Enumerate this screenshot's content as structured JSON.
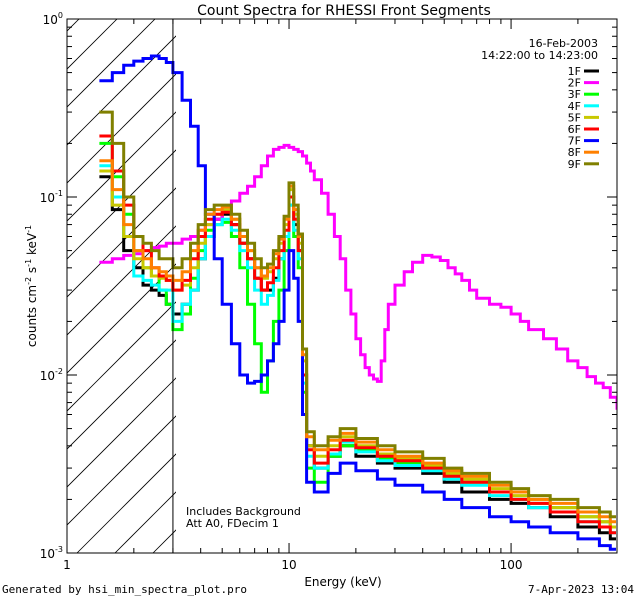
{
  "chart_data": {
    "type": "line",
    "title": "Count Spectra for RHESSI Front Segments",
    "xlabel": "Energy (keV)",
    "ylabel_parts": [
      "counts cm",
      "-2",
      " s",
      "-1",
      " keV",
      "-1"
    ],
    "xscale": "log",
    "yscale": "log",
    "xlim": [
      1,
      300
    ],
    "ylim": [
      0.001,
      1
    ],
    "x_ticks": [
      {
        "value": 1,
        "label": "1"
      },
      {
        "value": 10,
        "label": "10"
      },
      {
        "value": 100,
        "label": "100"
      }
    ],
    "y_ticks": [
      {
        "value": 1,
        "base": "10",
        "exp": "0"
      },
      {
        "value": 0.1,
        "base": "10",
        "exp": "-1"
      },
      {
        "value": 0.01,
        "base": "10",
        "exp": "-2"
      },
      {
        "value": 0.001,
        "base": "10",
        "exp": "-3"
      }
    ],
    "date": "16-Feb-2003",
    "time_range": "14:22:00 to 14:23:00",
    "annotations": [
      "Includes Background",
      "Att A0, FDecim 1"
    ],
    "attenuator_region_keV": [
      1,
      3
    ],
    "series": [
      {
        "name": "1F",
        "color": "#000000",
        "x": [
          1.4,
          1.6,
          1.8,
          2.0,
          2.2,
          2.4,
          2.6,
          2.8,
          3.0,
          3.3,
          3.6,
          3.9,
          4.2,
          4.6,
          5.0,
          5.5,
          6.0,
          6.5,
          7.0,
          7.5,
          8.0,
          8.5,
          9.0,
          9.5,
          10.0,
          10.5,
          11.0,
          11.5,
          12.0,
          13,
          15,
          17,
          20,
          25,
          30,
          40,
          50,
          60,
          80,
          100,
          120,
          150,
          200,
          250,
          280
        ],
        "y": [
          0.13,
          0.085,
          0.05,
          0.04,
          0.032,
          0.03,
          0.028,
          0.025,
          0.022,
          0.025,
          0.03,
          0.045,
          0.06,
          0.075,
          0.08,
          0.07,
          0.055,
          0.045,
          0.035,
          0.03,
          0.03,
          0.035,
          0.045,
          0.06,
          0.1,
          0.07,
          0.05,
          0.01,
          0.004,
          0.003,
          0.0035,
          0.004,
          0.0035,
          0.0032,
          0.003,
          0.0028,
          0.0025,
          0.0022,
          0.002,
          0.0019,
          0.0018,
          0.0016,
          0.0014,
          0.0013,
          0.0012
        ]
      },
      {
        "name": "2F",
        "color": "#ff00ff",
        "x": [
          1.4,
          1.6,
          1.8,
          2.0,
          2.2,
          2.4,
          2.6,
          2.8,
          3.0,
          3.3,
          3.6,
          3.9,
          4.2,
          4.6,
          5.0,
          5.5,
          6.0,
          6.5,
          7.0,
          7.5,
          8.0,
          8.5,
          9.0,
          9.5,
          10.0,
          10.5,
          11.0,
          11.5,
          12.0,
          12.5,
          13.0,
          14.0,
          15.0,
          16.0,
          17.0,
          18.0,
          19.0,
          20.0,
          21.0,
          22.0,
          23.0,
          24.0,
          25.0,
          26.0,
          27.0,
          28.0,
          30.0,
          33.0,
          36.0,
          40.0,
          44.0,
          48.0,
          52.0,
          56.0,
          60.0,
          65.0,
          70.0,
          80.0,
          90.0,
          100,
          110,
          120,
          140,
          160,
          180,
          200,
          220,
          240,
          260,
          280,
          300
        ],
        "y": [
          0.043,
          0.045,
          0.047,
          0.048,
          0.05,
          0.052,
          0.053,
          0.055,
          0.055,
          0.058,
          0.06,
          0.065,
          0.07,
          0.075,
          0.085,
          0.095,
          0.105,
          0.115,
          0.13,
          0.15,
          0.17,
          0.185,
          0.19,
          0.195,
          0.19,
          0.185,
          0.18,
          0.17,
          0.155,
          0.14,
          0.125,
          0.105,
          0.08,
          0.06,
          0.045,
          0.03,
          0.022,
          0.016,
          0.013,
          0.011,
          0.01,
          0.0095,
          0.0092,
          0.012,
          0.018,
          0.025,
          0.032,
          0.038,
          0.043,
          0.047,
          0.046,
          0.044,
          0.04,
          0.037,
          0.034,
          0.03,
          0.027,
          0.025,
          0.024,
          0.022,
          0.02,
          0.018,
          0.016,
          0.014,
          0.012,
          0.011,
          0.0098,
          0.009,
          0.0085,
          0.0075,
          0.0065
        ]
      },
      {
        "name": "3F",
        "color": "#00ff00",
        "x": [
          1.4,
          1.6,
          1.8,
          2.0,
          2.2,
          2.4,
          2.6,
          2.8,
          3.0,
          3.3,
          3.6,
          3.9,
          4.2,
          4.6,
          5.0,
          5.5,
          6.0,
          6.5,
          7.0,
          7.5,
          8.0,
          8.5,
          9.0,
          9.5,
          10.0,
          10.5,
          11.0,
          11.5,
          12.0,
          13,
          15,
          17,
          20,
          25,
          30,
          40,
          50,
          60,
          80,
          100,
          120,
          150,
          200,
          250,
          280
        ],
        "y": [
          0.2,
          0.13,
          0.08,
          0.05,
          0.04,
          0.036,
          0.03,
          0.025,
          0.018,
          0.022,
          0.035,
          0.05,
          0.065,
          0.07,
          0.072,
          0.06,
          0.04,
          0.025,
          0.015,
          0.008,
          0.012,
          0.02,
          0.03,
          0.05,
          0.09,
          0.06,
          0.04,
          0.008,
          0.003,
          0.0025,
          0.0035,
          0.004,
          0.0038,
          0.0034,
          0.0032,
          0.003,
          0.0027,
          0.0025,
          0.0022,
          0.002,
          0.0019,
          0.0018,
          0.0016,
          0.0015,
          0.0014
        ]
      },
      {
        "name": "4F",
        "color": "#00ffff",
        "x": [
          1.4,
          1.6,
          1.8,
          2.0,
          2.2,
          2.4,
          2.6,
          2.8,
          3.0,
          3.3,
          3.6,
          3.9,
          4.2,
          4.6,
          5.0,
          5.5,
          6.0,
          6.5,
          7.0,
          7.5,
          8.0,
          8.5,
          9.0,
          9.5,
          10.0,
          10.5,
          11.0,
          11.5,
          12.0,
          13,
          15,
          17,
          20,
          25,
          30,
          40,
          50,
          60,
          80,
          100,
          120,
          150,
          200,
          250,
          280
        ],
        "y": [
          0.15,
          0.1,
          0.06,
          0.036,
          0.034,
          0.032,
          0.03,
          0.03,
          0.02,
          0.025,
          0.03,
          0.045,
          0.06,
          0.07,
          0.075,
          0.065,
          0.05,
          0.04,
          0.03,
          0.025,
          0.028,
          0.034,
          0.045,
          0.06,
          0.09,
          0.065,
          0.045,
          0.009,
          0.0035,
          0.003,
          0.0036,
          0.0042,
          0.0037,
          0.0033,
          0.0031,
          0.0029,
          0.0026,
          0.0024,
          0.0021,
          0.002,
          0.0018,
          0.0017,
          0.0015,
          0.0014,
          0.0013
        ]
      },
      {
        "name": "5F",
        "color": "#c8c800",
        "x": [
          1.4,
          1.6,
          1.8,
          2.0,
          2.2,
          2.4,
          2.6,
          2.8,
          3.0,
          3.3,
          3.6,
          3.9,
          4.2,
          4.6,
          5.0,
          5.5,
          6.0,
          6.5,
          7.0,
          7.5,
          8.0,
          8.5,
          9.0,
          9.5,
          10.0,
          10.5,
          11.0,
          11.5,
          12.0,
          13,
          15,
          17,
          20,
          25,
          30,
          40,
          50,
          60,
          80,
          100,
          120,
          150,
          200,
          250,
          280
        ],
        "y": [
          0.14,
          0.09,
          0.06,
          0.045,
          0.04,
          0.036,
          0.035,
          0.034,
          0.03,
          0.032,
          0.04,
          0.055,
          0.07,
          0.08,
          0.085,
          0.075,
          0.06,
          0.05,
          0.04,
          0.035,
          0.038,
          0.045,
          0.055,
          0.07,
          0.11,
          0.08,
          0.055,
          0.012,
          0.004,
          0.0035,
          0.004,
          0.0045,
          0.004,
          0.0036,
          0.0034,
          0.0031,
          0.0028,
          0.0026,
          0.0023,
          0.0021,
          0.002,
          0.0018,
          0.0016,
          0.0015,
          0.0014
        ]
      },
      {
        "name": "6F",
        "color": "#ff0000",
        "x": [
          1.4,
          1.6,
          1.8,
          2.0,
          2.2,
          2.4,
          2.6,
          2.8,
          3.0,
          3.3,
          3.6,
          3.9,
          4.2,
          4.6,
          5.0,
          5.5,
          6.0,
          6.5,
          7.0,
          7.5,
          8.0,
          8.5,
          9.0,
          9.5,
          10.0,
          10.5,
          11.0,
          11.5,
          12.0,
          13,
          15,
          17,
          20,
          25,
          30,
          40,
          50,
          60,
          80,
          100,
          120,
          150,
          200,
          250,
          280
        ],
        "y": [
          0.22,
          0.14,
          0.09,
          0.06,
          0.05,
          0.04,
          0.036,
          0.034,
          0.03,
          0.034,
          0.045,
          0.06,
          0.075,
          0.08,
          0.082,
          0.07,
          0.055,
          0.045,
          0.035,
          0.03,
          0.033,
          0.04,
          0.05,
          0.065,
          0.1,
          0.075,
          0.05,
          0.01,
          0.0038,
          0.0032,
          0.0038,
          0.0043,
          0.0039,
          0.0035,
          0.0033,
          0.003,
          0.0027,
          0.0025,
          0.0022,
          0.002,
          0.0019,
          0.0017,
          0.0015,
          0.0014,
          0.0013
        ]
      },
      {
        "name": "7F",
        "color": "#0000ff",
        "x": [
          1.4,
          1.6,
          1.8,
          2.0,
          2.2,
          2.4,
          2.6,
          2.8,
          3.0,
          3.3,
          3.6,
          3.9,
          4.2,
          4.6,
          5.0,
          5.5,
          6.0,
          6.5,
          7.0,
          7.5,
          8.0,
          8.5,
          9.0,
          9.5,
          10.0,
          10.5,
          11.0,
          11.5,
          12.0,
          13,
          15,
          17,
          20,
          25,
          30,
          40,
          50,
          60,
          80,
          100,
          120,
          150,
          200,
          250,
          280
        ],
        "y": [
          0.45,
          0.5,
          0.55,
          0.58,
          0.6,
          0.62,
          0.6,
          0.57,
          0.5,
          0.35,
          0.25,
          0.15,
          0.08,
          0.045,
          0.025,
          0.015,
          0.01,
          0.009,
          0.0092,
          0.01,
          0.012,
          0.015,
          0.02,
          0.03,
          0.05,
          0.035,
          0.02,
          0.006,
          0.0025,
          0.0022,
          0.0028,
          0.0032,
          0.0029,
          0.0026,
          0.0024,
          0.0022,
          0.002,
          0.0018,
          0.0016,
          0.0015,
          0.0014,
          0.0013,
          0.0012,
          0.0011,
          0.00105
        ]
      },
      {
        "name": "8F",
        "color": "#ff8000",
        "x": [
          1.4,
          1.6,
          1.8,
          2.0,
          2.2,
          2.4,
          2.6,
          2.8,
          3.0,
          3.3,
          3.6,
          3.9,
          4.2,
          4.6,
          5.0,
          5.5,
          6.0,
          6.5,
          7.0,
          7.5,
          8.0,
          8.5,
          9.0,
          9.5,
          10.0,
          10.5,
          11.0,
          11.5,
          12.0,
          13,
          15,
          17,
          20,
          25,
          30,
          40,
          50,
          60,
          80,
          100,
          120,
          150,
          200,
          250,
          280
        ],
        "y": [
          0.16,
          0.11,
          0.07,
          0.05,
          0.045,
          0.04,
          0.038,
          0.036,
          0.034,
          0.038,
          0.05,
          0.065,
          0.08,
          0.085,
          0.088,
          0.075,
          0.06,
          0.05,
          0.04,
          0.036,
          0.04,
          0.048,
          0.058,
          0.075,
          0.115,
          0.085,
          0.06,
          0.013,
          0.0045,
          0.0038,
          0.0043,
          0.0047,
          0.0042,
          0.0038,
          0.0035,
          0.0032,
          0.0029,
          0.0027,
          0.0024,
          0.0022,
          0.002,
          0.0019,
          0.0017,
          0.0016,
          0.0015
        ]
      },
      {
        "name": "9F",
        "color": "#808000",
        "x": [
          1.4,
          1.6,
          1.8,
          2.0,
          2.2,
          2.4,
          2.6,
          2.8,
          3.0,
          3.3,
          3.6,
          3.9,
          4.2,
          4.6,
          5.0,
          5.5,
          6.0,
          6.5,
          7.0,
          7.5,
          8.0,
          8.5,
          9.0,
          9.5,
          10.0,
          10.5,
          11.0,
          11.5,
          12.0,
          13,
          15,
          17,
          20,
          25,
          30,
          40,
          50,
          60,
          80,
          100,
          120,
          150,
          200,
          250,
          280
        ],
        "y": [
          0.3,
          0.2,
          0.1,
          0.06,
          0.055,
          0.05,
          0.045,
          0.045,
          0.04,
          0.045,
          0.055,
          0.07,
          0.085,
          0.09,
          0.09,
          0.08,
          0.065,
          0.055,
          0.045,
          0.04,
          0.042,
          0.05,
          0.06,
          0.078,
          0.12,
          0.09,
          0.062,
          0.014,
          0.0048,
          0.004,
          0.0045,
          0.005,
          0.0044,
          0.004,
          0.0037,
          0.0034,
          0.003,
          0.0028,
          0.0025,
          0.0023,
          0.0021,
          0.002,
          0.0018,
          0.0017,
          0.0016
        ]
      }
    ]
  },
  "footer": {
    "generated": "Generated by hsi_min_spectra_plot.pro",
    "timestamp": "7-Apr-2023 13:04"
  }
}
